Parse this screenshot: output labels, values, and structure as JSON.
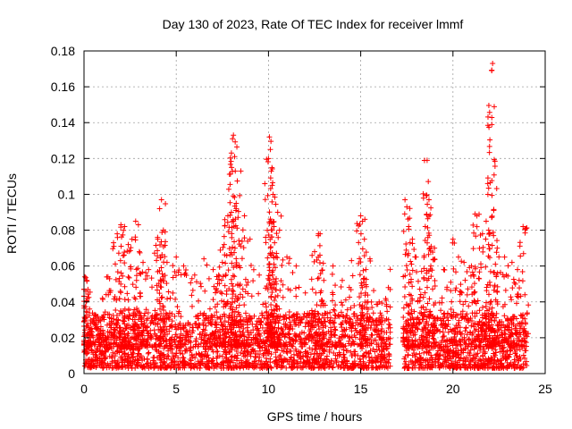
{
  "chart_data": {
    "type": "scatter",
    "title": "Day 130 of 2023, Rate Of TEC Index for receiver lmmf",
    "xlabel": "GPS time / hours",
    "ylabel": "ROTI / TECUs",
    "xlim": [
      0,
      25
    ],
    "ylim": [
      0,
      0.18
    ],
    "x_ticks": [
      "0",
      "5",
      "10",
      "15",
      "20",
      "25"
    ],
    "y_ticks": [
      "0",
      "0.02",
      "0.04",
      "0.06",
      "0.08",
      "0.1",
      "0.12",
      "0.14",
      "0.16",
      "0.18"
    ],
    "grid": true,
    "marker": "+",
    "color": "#ff0000",
    "data_gap_hours": [
      16.6,
      17.3
    ],
    "series": [
      {
        "points": [
          [
            0.05,
            0.054
          ],
          [
            0.1,
            0.046
          ],
          [
            0.15,
            0.052
          ],
          [
            0.3,
            0.036
          ],
          [
            0.5,
            0.03
          ],
          [
            1.0,
            0.042
          ],
          [
            1.3,
            0.054
          ],
          [
            1.6,
            0.073
          ],
          [
            1.8,
            0.078
          ],
          [
            2.0,
            0.083
          ],
          [
            2.2,
            0.082
          ],
          [
            2.4,
            0.072
          ],
          [
            2.6,
            0.075
          ],
          [
            2.8,
            0.085
          ],
          [
            3.0,
            0.068
          ],
          [
            3.2,
            0.062
          ],
          [
            3.5,
            0.058
          ],
          [
            4.0,
            0.075
          ],
          [
            4.1,
            0.092
          ],
          [
            4.2,
            0.097
          ],
          [
            4.3,
            0.08
          ],
          [
            4.5,
            0.062
          ],
          [
            5.0,
            0.065
          ],
          [
            5.4,
            0.06
          ],
          [
            6.0,
            0.055
          ],
          [
            6.5,
            0.064
          ],
          [
            7.0,
            0.058
          ],
          [
            7.3,
            0.055
          ],
          [
            7.5,
            0.062
          ],
          [
            7.6,
            0.072
          ],
          [
            7.8,
            0.088
          ],
          [
            8.0,
            0.115
          ],
          [
            8.05,
            0.131
          ],
          [
            8.1,
            0.133
          ],
          [
            8.2,
            0.113
          ],
          [
            8.25,
            0.095
          ],
          [
            8.5,
            0.113
          ],
          [
            8.7,
            0.088
          ],
          [
            9.0,
            0.075
          ],
          [
            9.5,
            0.055
          ],
          [
            10.0,
            0.12
          ],
          [
            10.05,
            0.132
          ],
          [
            10.1,
            0.125
          ],
          [
            10.15,
            0.113
          ],
          [
            10.2,
            0.105
          ],
          [
            10.25,
            0.1
          ],
          [
            10.3,
            0.082
          ],
          [
            10.5,
            0.09
          ],
          [
            10.6,
            0.08
          ],
          [
            11.0,
            0.065
          ],
          [
            11.5,
            0.06
          ],
          [
            12.0,
            0.045
          ],
          [
            12.5,
            0.068
          ],
          [
            12.7,
            0.077
          ],
          [
            12.8,
            0.078
          ],
          [
            13.0,
            0.052
          ],
          [
            13.5,
            0.06
          ],
          [
            14.0,
            0.052
          ],
          [
            14.5,
            0.063
          ],
          [
            15.0,
            0.088
          ],
          [
            15.1,
            0.085
          ],
          [
            15.2,
            0.075
          ],
          [
            15.5,
            0.064
          ],
          [
            16.0,
            0.04
          ],
          [
            16.5,
            0.048
          ],
          [
            17.4,
            0.097
          ],
          [
            17.5,
            0.093
          ],
          [
            17.6,
            0.082
          ],
          [
            17.8,
            0.075
          ],
          [
            18.0,
            0.065
          ],
          [
            18.3,
            0.057
          ],
          [
            18.5,
            0.082
          ],
          [
            18.6,
            0.119
          ],
          [
            18.7,
            0.097
          ],
          [
            18.8,
            0.06
          ],
          [
            19.0,
            0.07
          ],
          [
            19.5,
            0.058
          ],
          [
            20.0,
            0.075
          ],
          [
            20.3,
            0.065
          ],
          [
            20.6,
            0.062
          ],
          [
            21.0,
            0.06
          ],
          [
            21.2,
            0.089
          ],
          [
            21.3,
            0.088
          ],
          [
            21.6,
            0.078
          ],
          [
            21.8,
            0.085
          ],
          [
            22.0,
            0.078
          ],
          [
            22.1,
            0.169
          ],
          [
            22.15,
            0.173
          ],
          [
            22.2,
            0.077
          ],
          [
            22.4,
            0.07
          ],
          [
            22.8,
            0.065
          ],
          [
            23.2,
            0.062
          ],
          [
            23.5,
            0.058
          ],
          [
            23.8,
            0.082
          ],
          [
            23.9,
            0.044
          ]
        ],
        "dense_band": {
          "x_range": [
            0,
            24
          ],
          "typical_range": [
            0.003,
            0.025
          ],
          "note_free": true
        }
      }
    ]
  }
}
